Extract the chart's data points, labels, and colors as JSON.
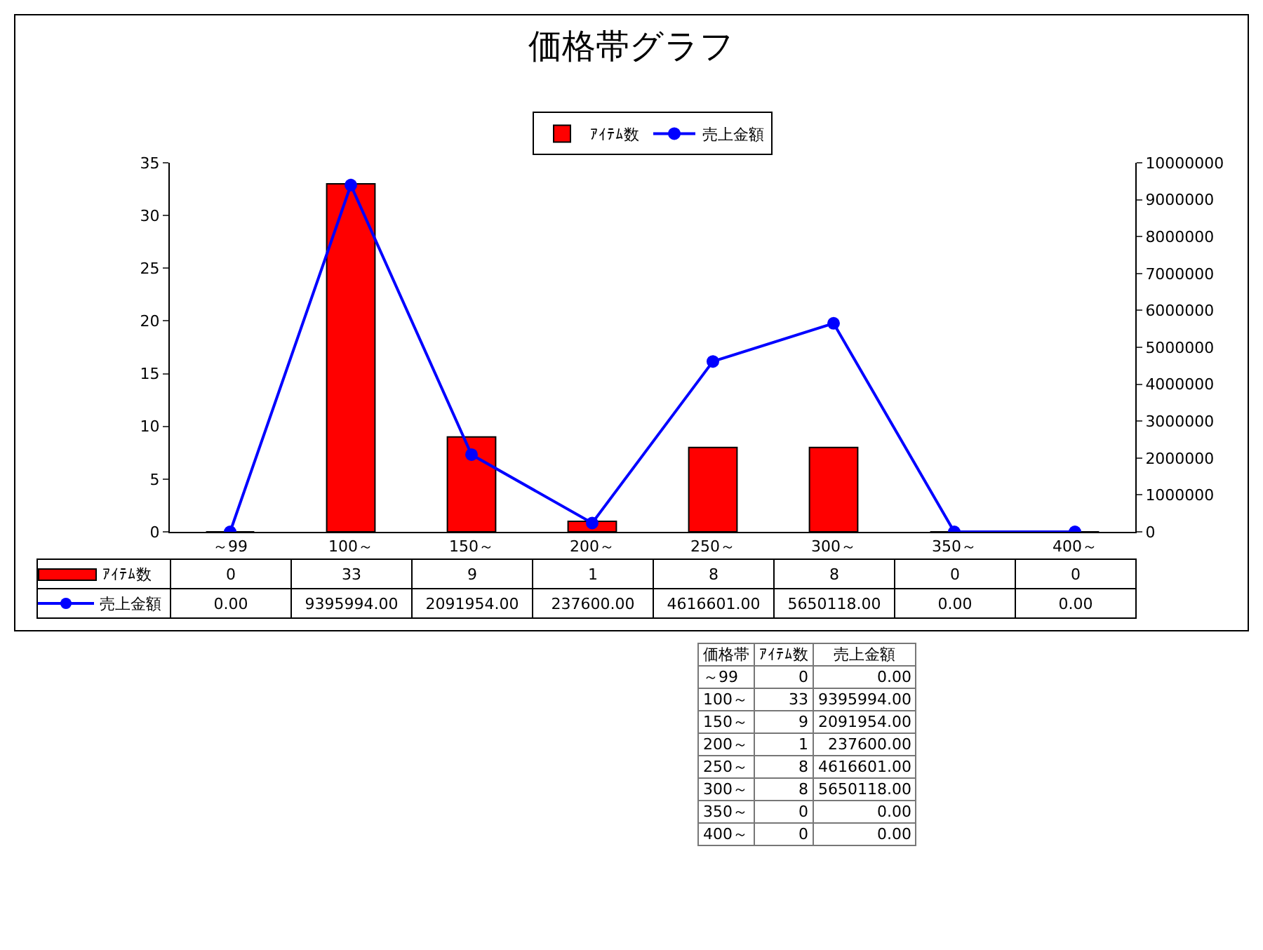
{
  "chart_data": {
    "type": "bar",
    "title": "価格帯グラフ",
    "annotations": [
      "価格帯"
    ],
    "categories": [
      "～99",
      "100～",
      "150～",
      "200～",
      "250～",
      "300～",
      "350～",
      "400～"
    ],
    "series": [
      {
        "name": "ｱｲﾃﾑ数",
        "color": "#ff0000",
        "values": [
          0,
          33,
          9,
          1,
          8,
          8,
          0,
          0
        ],
        "value_labels": [
          "0",
          "33",
          "9",
          "1",
          "8",
          "8",
          "0",
          "0"
        ]
      },
      {
        "name": "売上金額",
        "type": "line",
        "axis": "y2",
        "color": "#0000ff",
        "marker": "circle",
        "values": [
          0,
          9395994,
          2091954,
          237600,
          4616601,
          5650118,
          0,
          0
        ],
        "value_labels": [
          "0.00",
          "9395994.00",
          "2091954.00",
          "237600.00",
          "4616601.00",
          "5650118.00",
          "0.00",
          "0.00"
        ]
      }
    ],
    "ylim": [
      0,
      35
    ],
    "yticks": [
      0,
      5,
      10,
      15,
      20,
      25,
      30,
      35
    ],
    "y2lim": [
      0,
      10000000
    ],
    "y2ticks": [
      0,
      1000000,
      2000000,
      3000000,
      4000000,
      5000000,
      6000000,
      7000000,
      8000000,
      9000000,
      10000000
    ],
    "grid": false,
    "legend": "top"
  }
}
